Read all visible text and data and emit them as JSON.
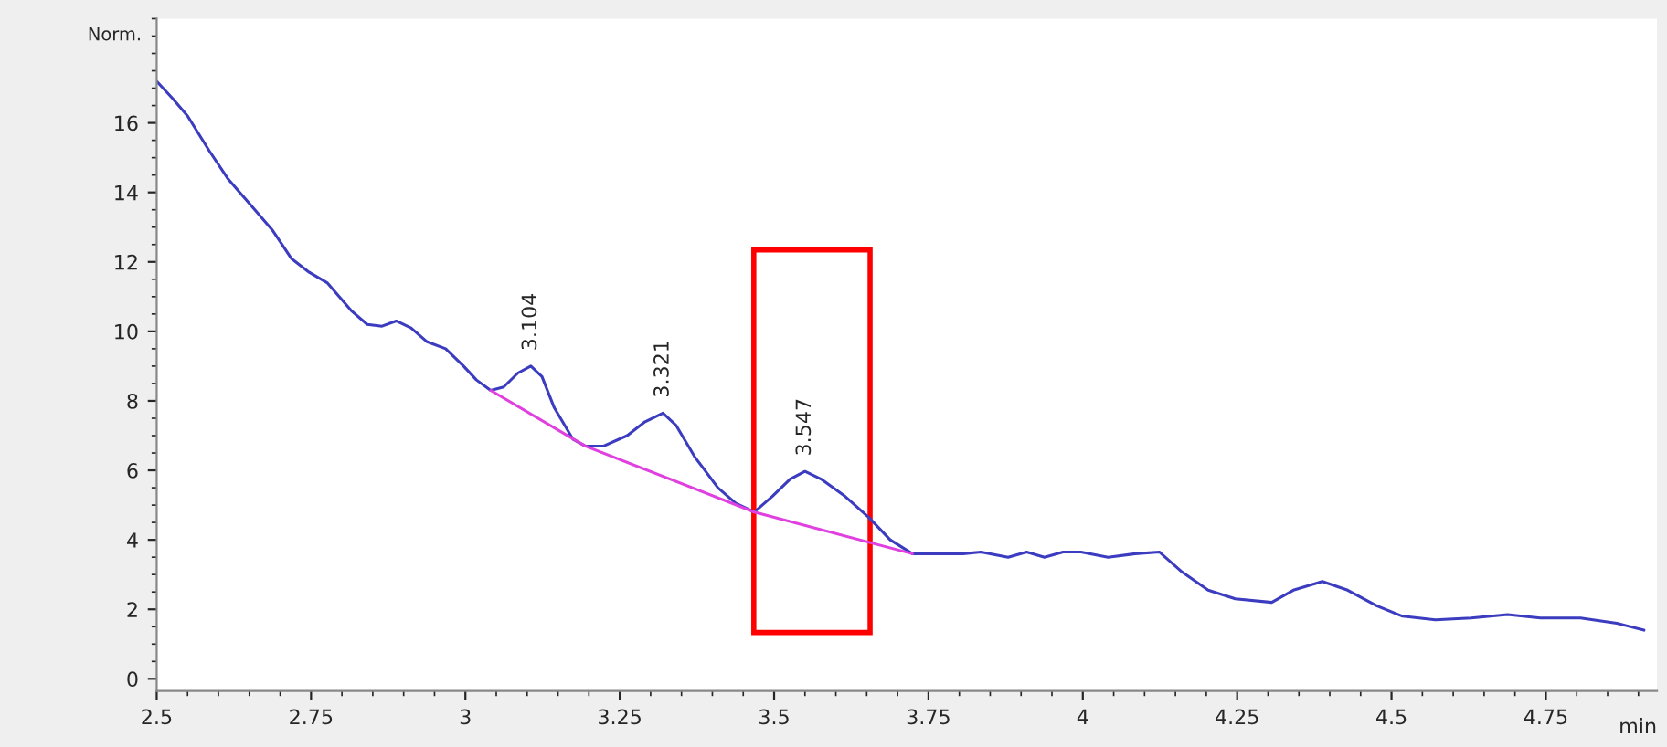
{
  "chart_data": {
    "type": "line",
    "ylabel": "Norm.",
    "xlabel": "min",
    "series": [
      {
        "color": "#3c3cc0",
        "x": [
          2.5,
          2.526,
          2.55,
          2.585,
          2.615,
          2.659,
          2.688,
          2.718,
          2.747,
          2.776,
          2.815,
          2.841,
          2.865,
          2.888,
          2.912,
          2.938,
          2.968,
          2.997,
          3.018,
          3.041,
          3.062,
          3.085,
          3.106,
          3.124,
          3.144,
          3.174,
          3.194,
          3.224,
          3.262,
          3.291,
          3.32,
          3.341,
          3.371,
          3.409,
          3.438,
          3.468,
          3.497,
          3.526,
          3.55,
          3.576,
          3.615,
          3.653,
          3.688,
          3.724,
          3.762,
          3.806,
          3.835,
          3.879,
          3.909,
          3.938,
          3.968,
          3.997,
          4.041,
          4.085,
          4.124,
          4.159,
          4.203,
          4.247,
          4.306,
          4.341,
          4.388,
          4.429,
          4.476,
          4.518,
          4.571,
          4.629,
          4.688,
          4.741,
          4.806,
          4.865,
          4.909
        ],
        "values": [
          17.2,
          16.7,
          16.2,
          15.2,
          14.4,
          13.5,
          12.9,
          12.1,
          11.7,
          11.4,
          10.6,
          10.2,
          10.15,
          10.3,
          10.1,
          9.7,
          9.5,
          9.0,
          8.6,
          8.3,
          8.4,
          8.8,
          9.0,
          8.7,
          7.8,
          6.9,
          6.7,
          6.7,
          7.0,
          7.4,
          7.65,
          7.3,
          6.4,
          5.5,
          5.05,
          4.8,
          5.25,
          5.75,
          5.97,
          5.75,
          5.25,
          4.65,
          4.0,
          3.6,
          3.6,
          3.6,
          3.65,
          3.5,
          3.65,
          3.5,
          3.65,
          3.65,
          3.5,
          3.6,
          3.65,
          3.1,
          2.55,
          2.3,
          2.2,
          2.55,
          2.8,
          2.55,
          2.1,
          1.8,
          1.7,
          1.75,
          1.85,
          1.75,
          1.75,
          1.6,
          1.4
        ]
      },
      {
        "color": "#e040e0",
        "x": [
          3.041,
          3.194,
          3.468,
          3.724
        ],
        "values": [
          8.3,
          6.7,
          4.8,
          3.6
        ]
      }
    ],
    "annotations": [
      {
        "text": "3.104",
        "x": 3.106,
        "y": 9.0
      },
      {
        "text": "3.321",
        "x": 3.32,
        "y": 7.65
      },
      {
        "text": "3.547",
        "x": 3.55,
        "y": 5.97
      }
    ],
    "xlim": [
      2.5,
      4.93
    ],
    "ylim": [
      -0.35,
      19.0
    ],
    "xticks": [
      {
        "value": 2.5,
        "label": "2.5"
      },
      2.75,
      3,
      3.25,
      {
        "value": 3.5,
        "label": "3.5"
      },
      3.75,
      4,
      4.25,
      {
        "value": 4.5,
        "label": "4.5"
      },
      4.75
    ],
    "yticks": [
      0,
      2,
      4,
      6,
      8,
      10,
      12,
      14,
      16
    ],
    "grid": false,
    "legend": false,
    "marker": "none",
    "line_style": "solid"
  }
}
